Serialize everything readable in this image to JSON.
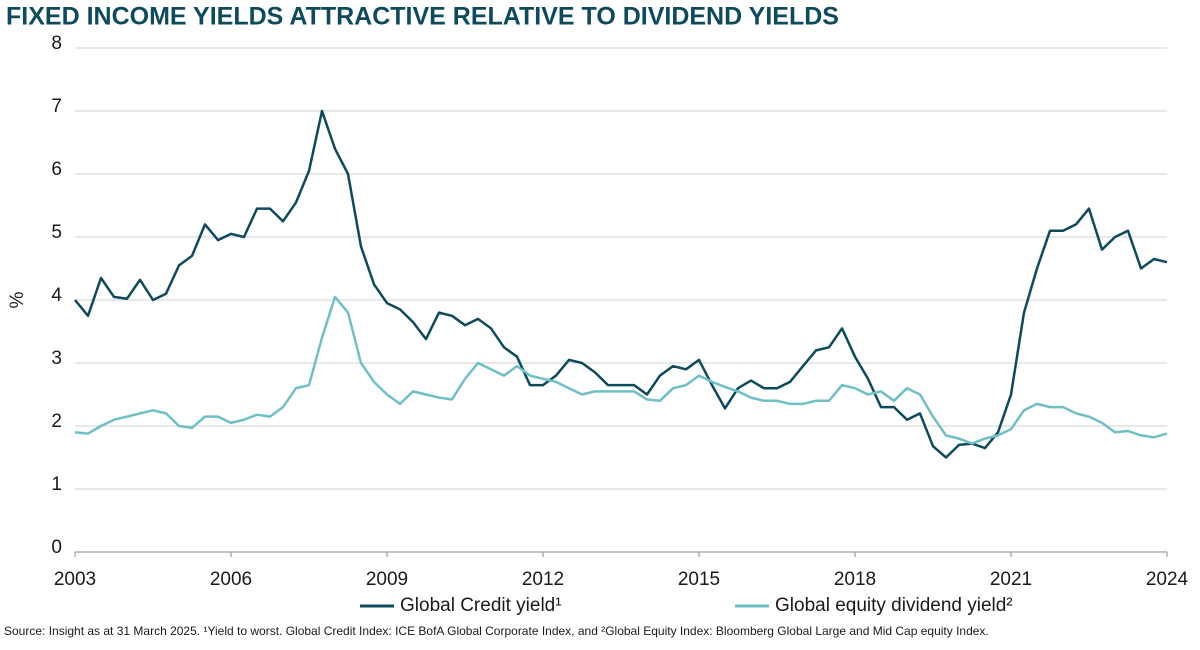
{
  "chart_data": {
    "type": "line",
    "title": "FIXED INCOME YIELDS ATTRACTIVE RELATIVE TO DIVIDEND YIELDS",
    "y_label": "%",
    "note": "Source: Insight as at 31 March 2025. ¹Yield to worst. Global Credit Index: ICE BofA Global Corporate Index, and ²Global Equity Index: Bloomberg Global Large and Mid Cap equity Index.",
    "x": [
      2003,
      2003.25,
      2003.5,
      2003.75,
      2004,
      2004.25,
      2004.5,
      2004.75,
      2005,
      2005.25,
      2005.5,
      2005.75,
      2006,
      2006.25,
      2006.5,
      2006.75,
      2007,
      2007.25,
      2007.5,
      2007.75,
      2008,
      2008.25,
      2008.5,
      2008.75,
      2009,
      2009.25,
      2009.5,
      2009.75,
      2010,
      2010.25,
      2010.5,
      2010.75,
      2011,
      2011.25,
      2011.5,
      2011.75,
      2012,
      2012.25,
      2012.5,
      2012.75,
      2013,
      2013.25,
      2013.5,
      2013.75,
      2014,
      2014.25,
      2014.5,
      2014.75,
      2015,
      2015.25,
      2015.5,
      2015.75,
      2016,
      2016.25,
      2016.5,
      2016.75,
      2017,
      2017.25,
      2017.5,
      2017.75,
      2018,
      2018.25,
      2018.5,
      2018.75,
      2019,
      2019.25,
      2019.5,
      2019.75,
      2020,
      2020.25,
      2020.5,
      2020.75,
      2021,
      2021.25,
      2021.5,
      2021.75,
      2022,
      2022.25,
      2022.5,
      2022.75,
      2023,
      2023.25,
      2023.5,
      2023.75,
      2024
    ],
    "series": [
      {
        "name": "Global Credit yield¹",
        "color": "#0d4a5c",
        "values": [
          4.0,
          3.75,
          4.35,
          4.05,
          4.02,
          4.32,
          4.0,
          4.1,
          4.55,
          4.7,
          5.2,
          4.95,
          5.05,
          5.0,
          5.45,
          5.45,
          5.25,
          5.55,
          6.05,
          7.0,
          6.4,
          6.0,
          4.85,
          4.25,
          3.95,
          3.85,
          3.65,
          3.38,
          3.8,
          3.75,
          3.6,
          3.7,
          3.55,
          3.25,
          3.1,
          2.65,
          2.65,
          2.8,
          3.05,
          3.0,
          2.85,
          2.65,
          2.65,
          2.65,
          2.5,
          2.8,
          2.95,
          2.9,
          3.05,
          2.65,
          2.28,
          2.6,
          2.72,
          2.6,
          2.6,
          2.7,
          2.95,
          3.2,
          3.25,
          3.55,
          3.1,
          2.75,
          2.3,
          2.3,
          2.1,
          2.2,
          1.68,
          1.5,
          1.7,
          1.72,
          1.65,
          1.9,
          2.5,
          3.8,
          4.5,
          5.1,
          5.1,
          5.2,
          5.45,
          4.8,
          5.0,
          5.1,
          4.5,
          4.65,
          4.6
        ]
      },
      {
        "name": "Global equity dividend yield²",
        "color": "#6fbfc7",
        "values": [
          1.9,
          1.88,
          2.0,
          2.1,
          2.15,
          2.2,
          2.25,
          2.2,
          2.0,
          1.97,
          2.15,
          2.15,
          2.05,
          2.1,
          2.18,
          2.15,
          2.3,
          2.6,
          2.65,
          3.4,
          4.05,
          3.8,
          3.0,
          2.7,
          2.5,
          2.35,
          2.55,
          2.5,
          2.45,
          2.42,
          2.75,
          3.0,
          2.9,
          2.8,
          2.95,
          2.8,
          2.75,
          2.7,
          2.6,
          2.5,
          2.55,
          2.55,
          2.55,
          2.55,
          2.42,
          2.4,
          2.6,
          2.65,
          2.8,
          2.7,
          2.62,
          2.55,
          2.45,
          2.4,
          2.4,
          2.35,
          2.35,
          2.4,
          2.4,
          2.65,
          2.6,
          2.5,
          2.55,
          2.4,
          2.6,
          2.5,
          2.15,
          1.85,
          1.8,
          1.72,
          1.8,
          1.85,
          1.95,
          2.25,
          2.35,
          2.3,
          2.3,
          2.2,
          2.15,
          2.05,
          1.9,
          1.92,
          1.85,
          1.82,
          1.88
        ]
      }
    ],
    "xlim": [
      2003,
      2024
    ],
    "xticks": [
      2003,
      2006,
      2009,
      2012,
      2015,
      2018,
      2021,
      2024
    ],
    "ylim": [
      0,
      8
    ],
    "yticks": [
      0,
      1,
      2,
      3,
      4,
      5,
      6,
      7,
      8
    ],
    "grid": true
  }
}
